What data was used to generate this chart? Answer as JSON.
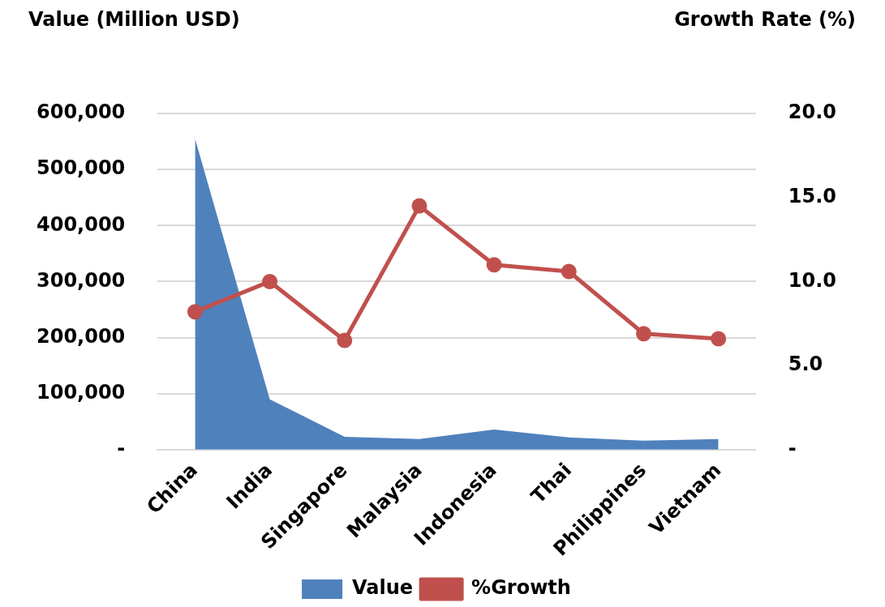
{
  "chart_data": {
    "type": "area",
    "ylabel": "Value (Million USD)",
    "y2label": "Growth Rate (%)",
    "categories": [
      "China",
      "India",
      "Singapore",
      "Malaysia",
      "Indonesia",
      "Thai",
      "Philippines",
      "Vietnam"
    ],
    "series": [
      {
        "name": "Value",
        "color": "#4f81bd",
        "values": [
          555000,
          90000,
          23000,
          19000,
          36000,
          22000,
          16000,
          19000
        ]
      },
      {
        "name": "%Growth",
        "type": "line",
        "axis": "y2",
        "color": "#c0504d",
        "marker": "circle",
        "values": [
          8.2,
          10.0,
          6.5,
          14.5,
          11.0,
          10.6,
          6.9,
          6.6
        ]
      }
    ],
    "ylim": [
      0,
      600000
    ],
    "yticks": [
      {
        "value": 0,
        "label": "-"
      },
      {
        "value": 100000,
        "label": "100,000"
      },
      {
        "value": 200000,
        "label": "200,000"
      },
      {
        "value": 300000,
        "label": "300,000"
      },
      {
        "value": 400000,
        "label": "400,000"
      },
      {
        "value": 500000,
        "label": "500,000"
      },
      {
        "value": 600000,
        "label": "600,000"
      }
    ],
    "y2lim": [
      0,
      20
    ],
    "y2ticks": [
      {
        "value": 0,
        "label": "-"
      },
      {
        "value": 5,
        "label": "5.0"
      },
      {
        "value": 10,
        "label": "10.0"
      },
      {
        "value": 15,
        "label": "15.0"
      },
      {
        "value": 20,
        "label": "20.0"
      }
    ],
    "grid": "y",
    "legend": "bottom"
  }
}
